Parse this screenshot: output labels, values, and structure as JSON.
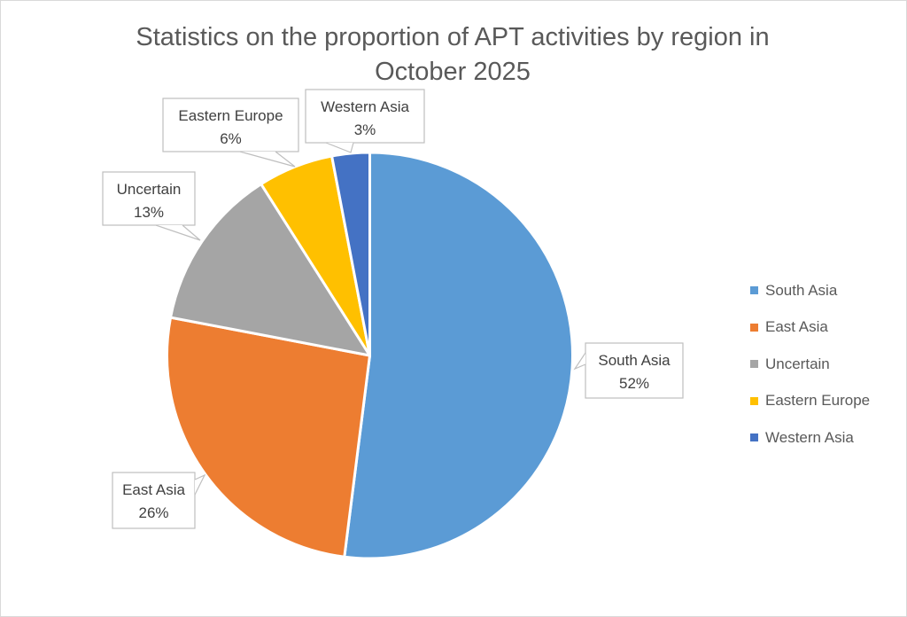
{
  "chart_data": {
    "type": "pie",
    "title": "Statistics on the proportion of APT activities by region in October 2025",
    "title_lines": [
      "Statistics on the proportion of APT activities by region in",
      "October 2025"
    ],
    "categories": [
      "South Asia",
      "East Asia",
      "Uncertain",
      "Eastern Europe",
      "Western Asia"
    ],
    "values": [
      52,
      26,
      13,
      6,
      3
    ],
    "data_labels": [
      "52%",
      "26%",
      "13%",
      "6%",
      "3%"
    ],
    "colors": [
      "#5B9BD5",
      "#ED7D31",
      "#A5A5A5",
      "#FFC000",
      "#4472C4"
    ],
    "start_angle": "12 o'clock",
    "direction": "clockwise",
    "legend_position": "right"
  }
}
